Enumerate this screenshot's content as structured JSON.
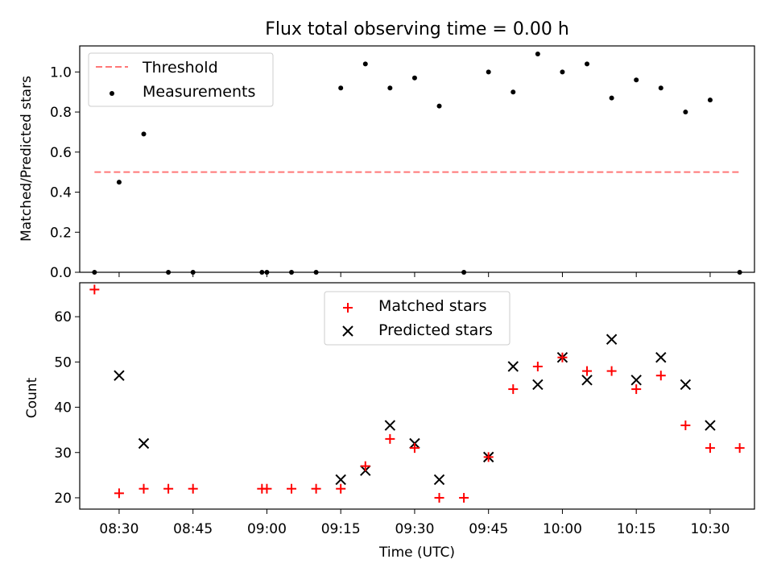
{
  "title": "Flux total observing time = 0.00 h",
  "colors": {
    "threshold": "#ff7777",
    "measurements": "#000000",
    "matched": "#ff0000",
    "predicted": "#000000"
  },
  "chart_data": [
    {
      "type": "scatter",
      "ylabel": "Matched/Predicted stars",
      "ylim": [
        0,
        1.13
      ],
      "yticks": [
        "0.0",
        "0.2",
        "0.4",
        "0.6",
        "0.8",
        "1.0"
      ],
      "legend_placement": "top-left",
      "threshold": {
        "name": "Threshold",
        "y": 0.5,
        "x_range": [
          "08:25",
          "10:36"
        ]
      },
      "series": [
        {
          "name": "Measurements",
          "x": [
            "08:25",
            "08:30",
            "08:35",
            "08:40",
            "08:45",
            "08:59",
            "09:00",
            "09:05",
            "09:10",
            "09:15",
            "09:20",
            "09:25",
            "09:30",
            "09:35",
            "09:40",
            "09:45",
            "09:50",
            "09:55",
            "10:00",
            "10:05",
            "10:10",
            "10:15",
            "10:20",
            "10:25",
            "10:30",
            "10:36"
          ],
          "y": [
            0.0,
            0.45,
            0.69,
            0.0,
            0.0,
            0.0,
            0.0,
            0.0,
            0.0,
            0.92,
            1.04,
            0.92,
            0.97,
            0.83,
            0.0,
            1.0,
            0.9,
            1.09,
            1.0,
            1.04,
            0.87,
            0.96,
            0.92,
            0.8,
            0.86,
            0.0
          ]
        }
      ]
    },
    {
      "type": "scatter",
      "xlabel": "Time (UTC)",
      "ylabel": "Count",
      "ylim": [
        17.5,
        67.5
      ],
      "yticks": [
        "20",
        "30",
        "40",
        "50",
        "60"
      ],
      "xticks": [
        "08:30",
        "08:45",
        "09:00",
        "09:15",
        "09:30",
        "09:45",
        "10:00",
        "10:15",
        "10:30"
      ],
      "legend_placement": "top-center",
      "series": [
        {
          "name": "Matched stars",
          "marker": "+",
          "x": [
            "08:25",
            "08:30",
            "08:35",
            "08:40",
            "08:45",
            "08:59",
            "09:00",
            "09:05",
            "09:10",
            "09:15",
            "09:20",
            "09:25",
            "09:30",
            "09:35",
            "09:40",
            "09:45",
            "09:50",
            "09:55",
            "10:00",
            "10:05",
            "10:10",
            "10:15",
            "10:20",
            "10:25",
            "10:30",
            "10:36"
          ],
          "y": [
            66,
            21,
            22,
            22,
            22,
            22,
            22,
            22,
            22,
            22,
            27,
            33,
            31,
            20,
            20,
            29,
            44,
            49,
            51,
            48,
            48,
            44,
            47,
            36,
            31,
            31
          ]
        },
        {
          "name": "Predicted stars",
          "marker": "x",
          "x": [
            "08:30",
            "08:35",
            "09:15",
            "09:20",
            "09:25",
            "09:30",
            "09:35",
            "09:45",
            "09:50",
            "09:55",
            "10:00",
            "10:05",
            "10:10",
            "10:15",
            "10:20",
            "10:25",
            "10:30"
          ],
          "y": [
            47,
            32,
            24,
            26,
            36,
            32,
            24,
            29,
            49,
            45,
            51,
            46,
            55,
            46,
            51,
            45,
            36
          ]
        }
      ]
    }
  ]
}
